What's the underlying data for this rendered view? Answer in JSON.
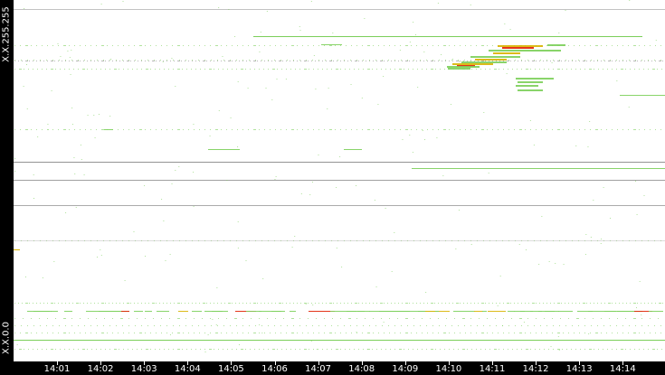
{
  "y_axis": {
    "top_label": "X.X.255.255",
    "bottom_label": "X.X.0.0"
  },
  "x_axis": {
    "ticks": [
      "14:01",
      "14:02",
      "14:03",
      "14:04",
      "14:05",
      "14:06",
      "14:07",
      "14:08",
      "14:09",
      "14:10",
      "14:11",
      "14:12",
      "14:13",
      "14:14"
    ]
  },
  "colors": {
    "low": "#7ccf5a",
    "mid": "#d8b400",
    "high": "#e02000",
    "axis_bg": "#000000",
    "faint": "#999999"
  }
}
